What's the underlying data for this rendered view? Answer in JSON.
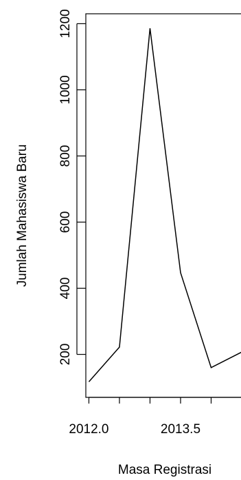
{
  "chart_data": {
    "type": "line",
    "xlabel": "Masa Registrasi",
    "ylabel": "Jumlah Mahasiswa Baru",
    "x_tick_values": [
      2012.0,
      2013.5
    ],
    "x_tick_labels": [
      "2012.0",
      "2013.5"
    ],
    "x_minor_ticks": [
      2012.0,
      2012.5,
      2013.0,
      2013.5,
      2014.0,
      2014.5
    ],
    "y_ticks": [
      200,
      400,
      600,
      800,
      1000,
      1200
    ],
    "y_tick_labels": [
      "200",
      "400",
      "600",
      "800",
      "1000",
      "1200"
    ],
    "series": [
      {
        "x": [
          2012.0,
          2012.5,
          2013.0,
          2013.5,
          2014.0,
          2014.5
        ],
        "y": [
          117,
          222,
          1186,
          447,
          160,
          207
        ]
      }
    ],
    "xlim": [
      2011.95,
      2014.5
    ],
    "ylim": [
      70,
      1230
    ],
    "box": true,
    "grid": false
  }
}
